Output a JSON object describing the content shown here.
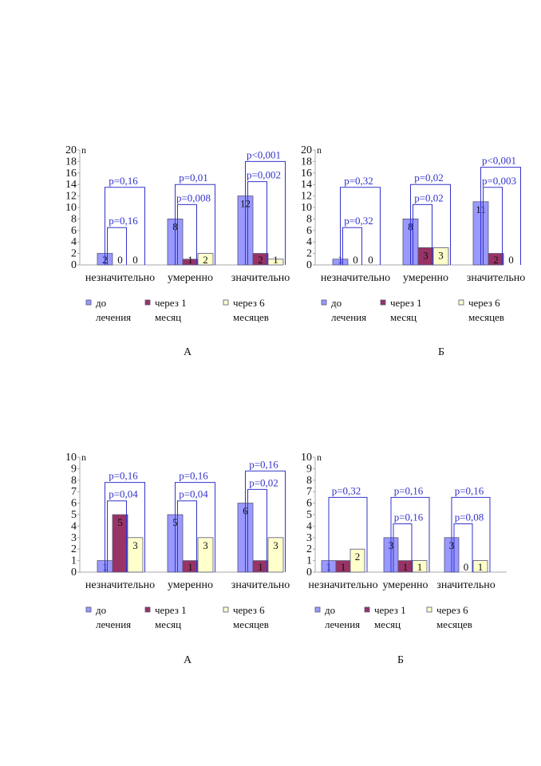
{
  "chart_data": [
    {
      "type": "bar",
      "ylabel": "n",
      "ylim": [
        0,
        20
      ],
      "yticks": [
        0,
        2,
        4,
        6,
        8,
        10,
        12,
        14,
        16,
        18,
        20
      ],
      "categories": [
        "незначительно",
        "умеренно",
        "значительно"
      ],
      "series": [
        {
          "name": "до лечения",
          "values": [
            2,
            8,
            12
          ]
        },
        {
          "name": "через 1 месяц",
          "values": [
            0,
            1,
            2
          ]
        },
        {
          "name": "через 6 месяцев",
          "values": [
            0,
            2,
            1
          ]
        }
      ],
      "data_labels": [
        [
          "2",
          "0",
          "0"
        ],
        [
          "8",
          "1",
          "2"
        ],
        [
          "12",
          "2",
          "1"
        ]
      ],
      "pvalues": [
        {
          "category": 0,
          "outer": "p=0,16",
          "inner": "p=0,16"
        },
        {
          "category": 1,
          "outer": "p=0,01",
          "inner": "p=0,008"
        },
        {
          "category": 2,
          "outer": "p<0,001",
          "inner": "p=0,002"
        }
      ],
      "legend": [
        "до лечения",
        "через 1 месяц",
        "через 6 месяцев"
      ],
      "legend_lines": [
        [
          "до",
          "лечения"
        ],
        [
          "через 1",
          "месяц"
        ],
        [
          "через 6",
          "месяцев"
        ]
      ],
      "caption": "А"
    },
    {
      "type": "bar",
      "ylabel": "n",
      "ylim": [
        0,
        20
      ],
      "yticks": [
        0,
        2,
        4,
        6,
        8,
        10,
        12,
        14,
        16,
        18,
        20
      ],
      "categories": [
        "незначительно",
        "умеренно",
        "значительно"
      ],
      "series": [
        {
          "name": "до лечения",
          "values": [
            1,
            8,
            11
          ]
        },
        {
          "name": "через 1 месяц",
          "values": [
            0,
            3,
            2
          ]
        },
        {
          "name": "через 6 месяцев",
          "values": [
            0,
            3,
            0
          ]
        }
      ],
      "data_labels": [
        [
          "1",
          "0",
          "0"
        ],
        [
          "8",
          "3",
          "3"
        ],
        [
          "11",
          "2",
          "0"
        ]
      ],
      "pvalues": [
        {
          "category": 0,
          "outer": "p=0,32",
          "inner": "p=0,32"
        },
        {
          "category": 1,
          "outer": "p=0,02",
          "inner": "p=0,02"
        },
        {
          "category": 2,
          "outer": "p<0,001",
          "inner": "p=0,003"
        }
      ],
      "legend": [
        "до лечения",
        "через 1 месяц",
        "через 6 месяцев"
      ],
      "legend_lines": [
        [
          "до",
          "лечения"
        ],
        [
          "через 1",
          "месяц"
        ],
        [
          "через 6",
          "месяцев"
        ]
      ],
      "caption": "Б"
    },
    {
      "type": "bar",
      "ylabel": "n",
      "ylim": [
        0,
        10
      ],
      "yticks": [
        0,
        1,
        2,
        3,
        4,
        5,
        6,
        7,
        8,
        9,
        10
      ],
      "categories": [
        "незначительно",
        "умеренно",
        "значительно"
      ],
      "series": [
        {
          "name": "до лечения",
          "values": [
            1,
            5,
            6
          ]
        },
        {
          "name": "через 1 месяц",
          "values": [
            5,
            1,
            1
          ]
        },
        {
          "name": "через 6 месяцев",
          "values": [
            3,
            3,
            3
          ]
        }
      ],
      "data_labels": [
        [
          "1",
          "5",
          "3"
        ],
        [
          "5",
          "1",
          "3"
        ],
        [
          "6",
          "1",
          "3"
        ]
      ],
      "pvalues": [
        {
          "category": 0,
          "outer": "p=0,16",
          "inner": "p=0,04"
        },
        {
          "category": 1,
          "outer": "p=0,16",
          "inner": "p=0,04"
        },
        {
          "category": 2,
          "outer": "p=0,16",
          "inner": "p=0,02"
        }
      ],
      "legend": [
        "до лечения",
        "через 1 месяц",
        "через 6 месяцев"
      ],
      "legend_lines": [
        [
          "до",
          "лечения"
        ],
        [
          "через 1",
          "месяц"
        ],
        [
          "через 6",
          "месяцев"
        ]
      ],
      "caption": "А"
    },
    {
      "type": "bar",
      "ylabel": "n",
      "ylim": [
        0,
        10
      ],
      "yticks": [
        0,
        1,
        2,
        3,
        4,
        5,
        6,
        7,
        8,
        9,
        10
      ],
      "categories": [
        "незначительно",
        "умеренно",
        "значительно"
      ],
      "series": [
        {
          "name": "до лечения",
          "values": [
            1,
            3,
            3
          ]
        },
        {
          "name": "через 1 месяц",
          "values": [
            1,
            1,
            0
          ]
        },
        {
          "name": "через 6 месяцев",
          "values": [
            2,
            1,
            1
          ]
        }
      ],
      "data_labels": [
        [
          "1",
          "1",
          "2"
        ],
        [
          "3",
          "1",
          "1"
        ],
        [
          "3",
          "0",
          "1"
        ]
      ],
      "pvalues": [
        {
          "category": 0,
          "outer": "p=0,32",
          "inner": ""
        },
        {
          "category": 1,
          "outer": "p=0,16",
          "inner": "p=0,16"
        },
        {
          "category": 2,
          "outer": "p=0,16",
          "inner": "p=0,08"
        }
      ],
      "legend": [
        "до лечения",
        "через 1 месяц",
        "через 6 месяцев"
      ],
      "legend_lines": [
        [
          "до",
          "лечения"
        ],
        [
          "через 1",
          "месяц"
        ],
        [
          "через 6",
          "месяцев"
        ]
      ],
      "caption": "Б"
    }
  ]
}
